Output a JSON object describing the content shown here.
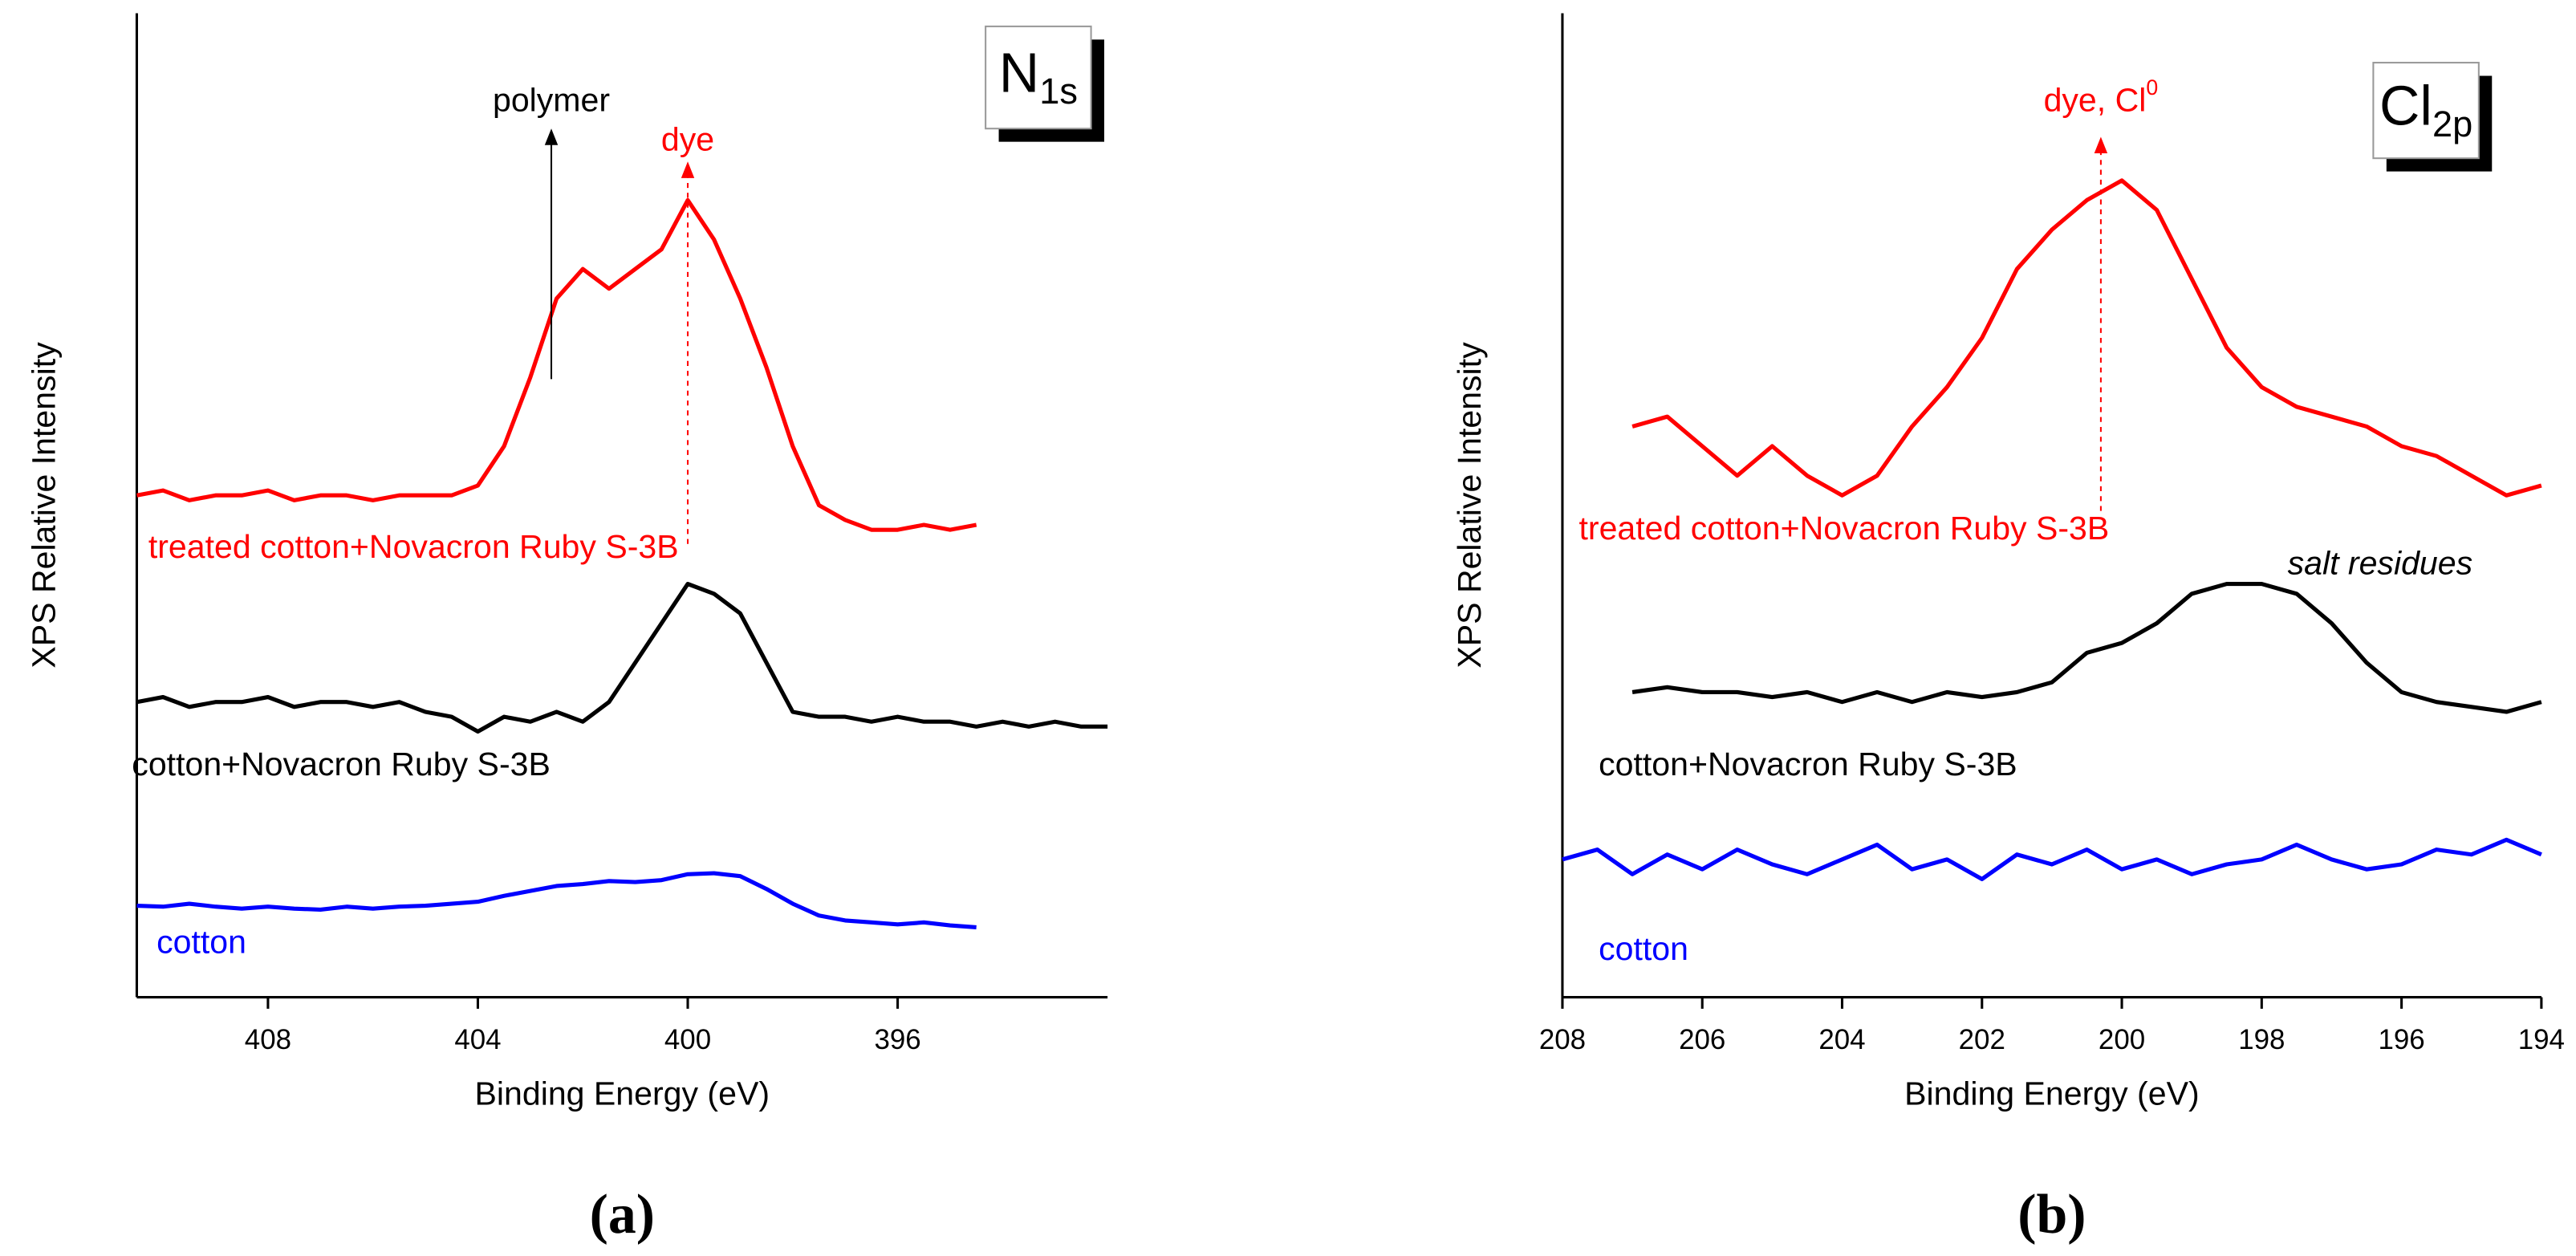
{
  "chart_data": [
    {
      "type": "line",
      "element_label": {
        "main": "N",
        "sub": "1s"
      },
      "xlabel": "Binding Energy (eV)",
      "ylabel": "XPS Relative Intensity",
      "caption": "(a)",
      "xlim": [
        410.5,
        392
      ],
      "xticks": [
        408,
        404,
        400,
        396
      ],
      "ylim": [
        0,
        100
      ],
      "series": [
        {
          "name": "treated cotton+Novacron Ruby S-3B",
          "color": "#ff0000",
          "x": [
            410.5,
            410,
            409.5,
            409,
            408.5,
            408,
            407.5,
            407,
            406.5,
            406,
            405.5,
            405,
            404.5,
            404,
            403.5,
            403,
            402.5,
            402,
            401.5,
            401,
            400.5,
            400,
            399.5,
            399,
            398.5,
            398,
            397.5,
            397,
            396.5,
            396,
            395.5,
            395,
            394.5
          ],
          "values": [
            51,
            51.5,
            50.5,
            51,
            51,
            51.5,
            50.5,
            51,
            51,
            50.5,
            51,
            51,
            51,
            52,
            56,
            63,
            71,
            74,
            72,
            74,
            76,
            81,
            77,
            71,
            64,
            56,
            50,
            48.5,
            47.5,
            47.5,
            48,
            47.5,
            48
          ]
        },
        {
          "name": "cotton+Novacron Ruby S-3B",
          "color": "#000000",
          "x": [
            410.5,
            410,
            409.5,
            409,
            408.5,
            408,
            407.5,
            407,
            406.5,
            406,
            405.5,
            405,
            404.5,
            404,
            403.5,
            403,
            402.5,
            402,
            401.5,
            401,
            400.5,
            400,
            399.5,
            399,
            398.5,
            398,
            397.5,
            397,
            396.5,
            396,
            395.5,
            395,
            394.5,
            394,
            393.5,
            393,
            392.5,
            392
          ],
          "values": [
            30,
            30.5,
            29.5,
            30,
            30,
            30.5,
            29.5,
            30,
            30,
            29.5,
            30,
            29,
            28.5,
            27,
            28.5,
            28,
            29,
            28,
            30,
            34,
            38,
            42,
            41,
            39,
            34,
            29,
            28.5,
            28.5,
            28,
            28.5,
            28,
            28,
            27.5,
            28,
            27.5,
            28,
            27.5,
            27.5
          ]
        },
        {
          "name": "cotton",
          "color": "#0000ff",
          "x": [
            410.5,
            410,
            409.5,
            409,
            408.5,
            408,
            407.5,
            407,
            406.5,
            406,
            405.5,
            405,
            404.5,
            404,
            403.5,
            403,
            402.5,
            402,
            401.5,
            401,
            400.5,
            400,
            399.5,
            399,
            398.5,
            398,
            397.5,
            397,
            396.5,
            396,
            395.5,
            395,
            394.5
          ],
          "values": [
            9.3,
            9.2,
            9.5,
            9.2,
            9,
            9.2,
            9,
            8.9,
            9.2,
            9,
            9.2,
            9.3,
            9.5,
            9.7,
            10.3,
            10.8,
            11.3,
            11.5,
            11.8,
            11.7,
            11.9,
            12.5,
            12.6,
            12.3,
            11,
            9.5,
            8.3,
            7.8,
            7.6,
            7.4,
            7.6,
            7.3,
            7.1
          ]
        }
      ],
      "annotations": [
        {
          "text": "polymer",
          "x": 402.6,
          "color": "#000000"
        },
        {
          "text": "dye",
          "x": 400,
          "color": "#ff0000"
        }
      ]
    },
    {
      "type": "line",
      "element_label": {
        "main": "Cl",
        "sub": "2p"
      },
      "xlabel": "Binding Energy (eV)",
      "ylabel": "XPS Relative Intensity",
      "caption": "(b)",
      "xlim": [
        208,
        194
      ],
      "xticks": [
        208,
        206,
        204,
        202,
        200,
        198,
        196,
        194
      ],
      "ylim": [
        0,
        100
      ],
      "series": [
        {
          "name": "treated cotton+Novacron Ruby S-3B",
          "color": "#ff0000",
          "x": [
            207,
            206.5,
            206,
            205.5,
            205,
            204.5,
            204,
            203.5,
            203,
            202.5,
            202,
            201.5,
            201,
            200.5,
            200,
            199.5,
            199,
            198.5,
            198,
            197.5,
            197,
            196.5,
            196,
            195.5,
            195,
            194.5,
            194
          ],
          "values": [
            58,
            59,
            56,
            53,
            56,
            53,
            51,
            53,
            58,
            62,
            67,
            74,
            78,
            81,
            83,
            80,
            73,
            66,
            62,
            60,
            59,
            58,
            56,
            55,
            53,
            51,
            52
          ]
        },
        {
          "name": "cotton+Novacron Ruby S-3B",
          "color": "#000000",
          "x": [
            207,
            206.5,
            206,
            205.5,
            205,
            204.5,
            204,
            203.5,
            203,
            202.5,
            202,
            201.5,
            201,
            200.5,
            200,
            199.5,
            199,
            198.5,
            198,
            197.5,
            197,
            196.5,
            196,
            195.5,
            195,
            194.5,
            194
          ],
          "values": [
            31,
            31.5,
            31,
            31,
            30.5,
            31,
            30,
            31,
            30,
            31,
            30.5,
            31,
            32,
            35,
            36,
            38,
            41,
            42,
            42,
            41,
            38,
            34,
            31,
            30,
            29.5,
            29,
            30
          ]
        },
        {
          "name": "cotton",
          "color": "#0000ff",
          "x": [
            208,
            207.5,
            207,
            206.5,
            206,
            205.5,
            205,
            204.5,
            204,
            203.5,
            203,
            202.5,
            202,
            201.5,
            201,
            200.5,
            200,
            199.5,
            199,
            198.5,
            198,
            197.5,
            197,
            196.5,
            196,
            195.5,
            195,
            194.5,
            194
          ],
          "values": [
            14,
            15,
            12.5,
            14.5,
            13,
            15,
            13.5,
            12.5,
            14,
            15.5,
            13,
            14,
            12,
            14.5,
            13.5,
            15,
            13,
            14,
            12.5,
            13.5,
            14,
            15.5,
            14,
            13,
            13.5,
            15,
            14.5,
            16,
            14.5
          ]
        }
      ],
      "annotations": [
        {
          "text": "dye, Cl",
          "sup": "0",
          "x": 200.3,
          "color": "#ff0000"
        },
        {
          "text": "salt residues",
          "color": "#000000",
          "italic": true
        }
      ]
    }
  ]
}
